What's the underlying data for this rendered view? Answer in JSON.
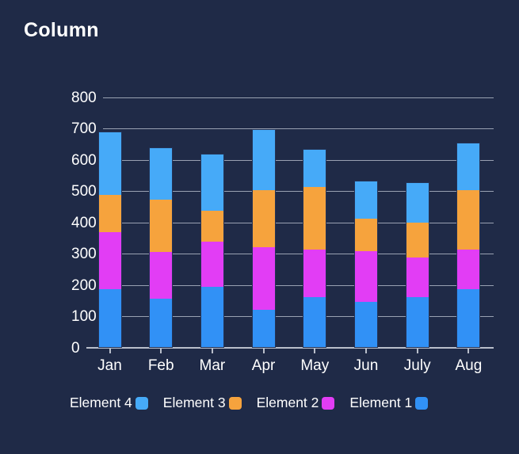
{
  "title": "Column",
  "colors": {
    "background": "#1F2A47",
    "grid": "#99A1B2",
    "axis": "#B9BFCB",
    "text": "#FFFFFF",
    "bar_outline": "#243356"
  },
  "chart_data": {
    "type": "bar",
    "stacked": true,
    "title": "Column",
    "xlabel": "",
    "ylabel": "",
    "categories": [
      "Jan",
      "Feb",
      "Mar",
      "Apr",
      "May",
      "Jun",
      "July",
      "Aug"
    ],
    "series": [
      {
        "name": "Element 1",
        "color": "#3191F6",
        "values": [
          185,
          155,
          195,
          120,
          160,
          145,
          160,
          185
        ]
      },
      {
        "name": "Element 2",
        "color": "#E23DF5",
        "values": [
          185,
          150,
          145,
          200,
          155,
          165,
          130,
          130
        ]
      },
      {
        "name": "Element 3",
        "color": "#F6A33D",
        "values": [
          120,
          170,
          100,
          185,
          200,
          105,
          110,
          190
        ]
      },
      {
        "name": "Element 4",
        "color": "#46AAF8",
        "values": [
          200,
          165,
          180,
          195,
          120,
          120,
          130,
          150
        ]
      }
    ],
    "stack_order_bottom_to_top": [
      "Element 1",
      "Element 2",
      "Element 3",
      "Element 4"
    ],
    "totals": [
      690,
      640,
      620,
      700,
      635,
      535,
      530,
      655
    ],
    "ylim": [
      0,
      800
    ],
    "yticks": [
      800,
      700,
      600,
      500,
      400,
      300,
      200,
      100,
      0
    ],
    "grid": true,
    "legend_position": "bottom",
    "legend_order": [
      "Element 4",
      "Element 3",
      "Element 2",
      "Element 1"
    ]
  }
}
